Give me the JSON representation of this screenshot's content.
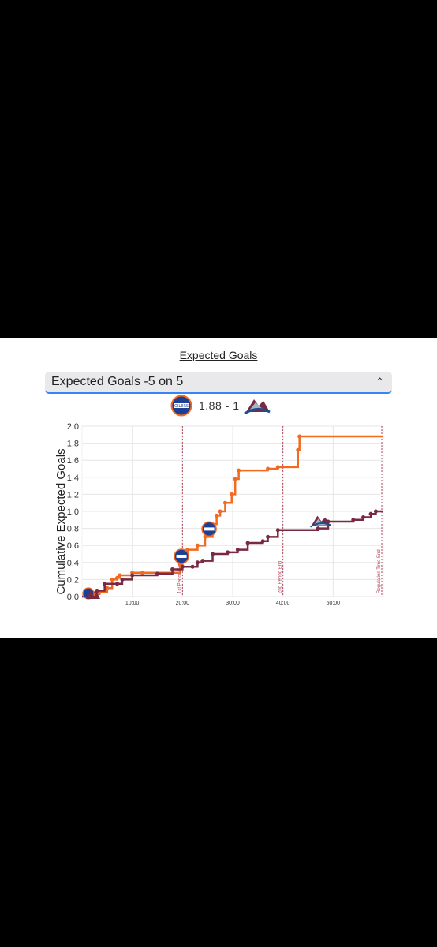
{
  "header": {
    "title": "Expected Goals",
    "select_value": "Expected Goals -5 on 5",
    "score_text": "1.88 - 1"
  },
  "colors": {
    "oilers": "#f26a21",
    "avalanche": "#7a2942",
    "period_line": "#b0455a",
    "grid": "#e6e6e6",
    "select_accent": "#3b82f6"
  },
  "icons": {
    "select": "chevron-up-down-icon",
    "home_logo": "oilers-logo-icon",
    "away_logo": "avalanche-logo-icon"
  },
  "chart_data": {
    "type": "line",
    "ylabel": "Cumulative Expected Goals",
    "xlabel": "",
    "xlim": [
      0,
      60
    ],
    "ylim": [
      0,
      2
    ],
    "x_ticks": [
      {
        "v": 10,
        "label": "10:00"
      },
      {
        "v": 20,
        "label": "20:00"
      },
      {
        "v": 30,
        "label": "30:00"
      },
      {
        "v": 40,
        "label": "40:00"
      },
      {
        "v": 50,
        "label": "50:00"
      }
    ],
    "y_ticks": [
      {
        "v": 0,
        "label": "0.0"
      },
      {
        "v": 0.2,
        "label": "0.2"
      },
      {
        "v": 0.4,
        "label": "0.4"
      },
      {
        "v": 0.6,
        "label": "0.6"
      },
      {
        "v": 0.8,
        "label": "0.8"
      },
      {
        "v": 1.0,
        "label": "1.0"
      },
      {
        "v": 1.2,
        "label": "1.2"
      },
      {
        "v": 1.4,
        "label": "1.4"
      },
      {
        "v": 1.6,
        "label": "1.6"
      },
      {
        "v": 1.8,
        "label": "1.8"
      },
      {
        "v": 2.0,
        "label": "2.0"
      }
    ],
    "period_markers": [
      {
        "x": 20,
        "label": "1st Period End"
      },
      {
        "x": 40,
        "label": "2nd Period End"
      },
      {
        "x": 60,
        "label": "Regulation Time End"
      }
    ],
    "grid": true,
    "series": [
      {
        "team": "oilers",
        "steps": [
          [
            0,
            0
          ],
          [
            1.5,
            0.03
          ],
          [
            3.5,
            0.05
          ],
          [
            5,
            0.1
          ],
          [
            6,
            0.2
          ],
          [
            7,
            0.22
          ],
          [
            7.5,
            0.25
          ],
          [
            10,
            0.28
          ],
          [
            12,
            0.28
          ],
          [
            19.5,
            0.38
          ],
          [
            20,
            0.5
          ],
          [
            21,
            0.55
          ],
          [
            23,
            0.6
          ],
          [
            24.5,
            0.7
          ],
          [
            26,
            0.85
          ],
          [
            26.8,
            0.95
          ],
          [
            27.5,
            1.0
          ],
          [
            28.5,
            1.1
          ],
          [
            29.8,
            1.2
          ],
          [
            30.5,
            1.38
          ],
          [
            31.2,
            1.48
          ],
          [
            37,
            1.5
          ],
          [
            39,
            1.52
          ],
          [
            43,
            1.72
          ],
          [
            43.3,
            1.88
          ],
          [
            60,
            1.88
          ]
        ],
        "goals": [
          [
            19.8,
            0.38
          ],
          [
            25.3,
            0.7
          ]
        ]
      },
      {
        "team": "avalanche",
        "steps": [
          [
            0,
            0
          ],
          [
            1,
            0.05
          ],
          [
            3,
            0.07
          ],
          [
            4.5,
            0.15
          ],
          [
            7,
            0.15
          ],
          [
            8,
            0.2
          ],
          [
            10,
            0.25
          ],
          [
            15,
            0.27
          ],
          [
            18,
            0.32
          ],
          [
            20,
            0.35
          ],
          [
            22,
            0.35
          ],
          [
            23,
            0.4
          ],
          [
            24,
            0.42
          ],
          [
            26,
            0.5
          ],
          [
            29,
            0.52
          ],
          [
            31,
            0.55
          ],
          [
            33,
            0.63
          ],
          [
            36,
            0.65
          ],
          [
            37,
            0.7
          ],
          [
            39,
            0.78
          ],
          [
            47,
            0.8
          ],
          [
            49,
            0.88
          ],
          [
            54,
            0.9
          ],
          [
            56,
            0.93
          ],
          [
            57.5,
            0.97
          ],
          [
            58.5,
            1.0
          ],
          [
            60,
            1.0
          ]
        ],
        "goals": [
          [
            47.5,
            0.8
          ]
        ]
      }
    ]
  }
}
